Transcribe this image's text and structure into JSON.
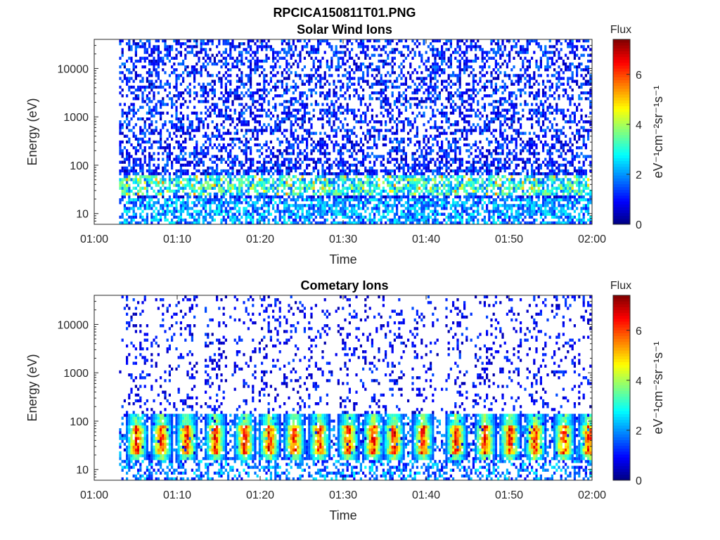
{
  "figure_title": "RPCICA150811T01.PNG",
  "chart_data": [
    {
      "type": "heatmap",
      "title": "Solar Wind Ions",
      "xlabel": "Time",
      "ylabel": "Energy (eV)",
      "x_ticks": [
        "01:00",
        "01:10",
        "01:20",
        "01:30",
        "01:40",
        "01:50",
        "02:00"
      ],
      "x_range_minutes": [
        0,
        60
      ],
      "y_scale": "log",
      "y_ticks": [
        10,
        100,
        1000,
        10000
      ],
      "y_tick_labels": [
        "10",
        "100",
        "1000",
        "10000"
      ],
      "ylim": [
        6,
        40000
      ],
      "data_start_minute": 3,
      "colorbar": {
        "label": "Flux",
        "unit_label": "eV⁻¹cm⁻²sr⁻¹s⁻¹",
        "range": [
          0,
          7.4
        ],
        "ticks": [
          0,
          2,
          4,
          6
        ],
        "colormap": "jet"
      },
      "pattern": "sparse high-energy noise across all energies, enhanced flux near 25-60 eV",
      "peak_band_eV": [
        25,
        60
      ]
    },
    {
      "type": "heatmap",
      "title": "Cometary Ions",
      "xlabel": "Time",
      "ylabel": "Energy (eV)",
      "x_ticks": [
        "01:00",
        "01:10",
        "01:20",
        "01:30",
        "01:40",
        "01:50",
        "02:00"
      ],
      "x_range_minutes": [
        0,
        60
      ],
      "y_scale": "log",
      "y_ticks": [
        10,
        100,
        1000,
        10000
      ],
      "y_tick_labels": [
        "10",
        "100",
        "1000",
        "10000"
      ],
      "ylim": [
        6,
        40000
      ],
      "data_start_minute": 3,
      "colorbar": {
        "label": "Flux",
        "unit_label": "eV⁻¹cm⁻²sr⁻¹s⁻¹",
        "range": [
          0,
          7.4
        ],
        "ticks": [
          0,
          2,
          4,
          6
        ],
        "colormap": "jet"
      },
      "pattern": "periodic bursts of high flux between 15 and 150 eV with sparse high-energy counts",
      "burst_centers_minutes": [
        5,
        8,
        11,
        14.5,
        18,
        21,
        24,
        27,
        30.5,
        33.5,
        36,
        39.5,
        43.5,
        47,
        50,
        53,
        56.5,
        59.5
      ],
      "peak_band_eV": [
        20,
        80
      ]
    }
  ]
}
